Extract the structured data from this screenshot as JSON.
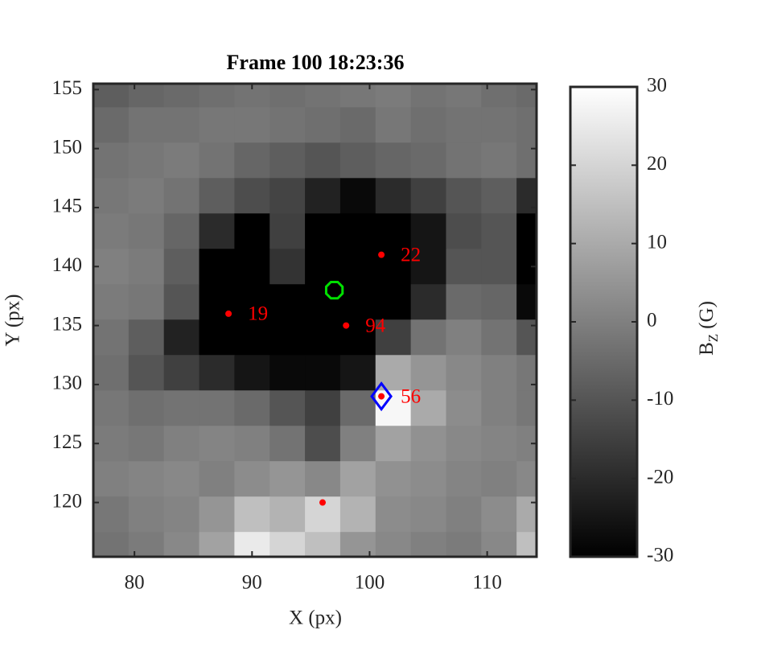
{
  "chart_data": {
    "type": "heatmap",
    "title": "Frame 100  18:23:36",
    "x_label": "X (px)",
    "y_label": "Y (px)",
    "colorbar_label": {
      "main": "B",
      "sub": "Z",
      "unit": "(G)"
    },
    "xlim": [
      76.5,
      114.2
    ],
    "ylim": [
      115.4,
      155.5
    ],
    "xticks": [
      80,
      90,
      100,
      110
    ],
    "yticks": [
      120,
      125,
      130,
      135,
      140,
      145,
      150,
      155
    ],
    "clim": [
      -30,
      30
    ],
    "cticks": [
      -30,
      -20,
      -10,
      0,
      10,
      20,
      30
    ],
    "cell_size": 3,
    "x": [
      78,
      81,
      84,
      87,
      90,
      93,
      96,
      99,
      102,
      105,
      108,
      111,
      114
    ],
    "y": [
      155,
      152,
      149,
      146,
      143,
      140,
      137,
      134,
      131,
      128,
      125,
      122,
      119,
      116
    ],
    "z": [
      [
        -8,
        -6,
        -5,
        -4,
        -3,
        -4,
        -3,
        -2,
        -1,
        -3,
        -2,
        -4,
        -5
      ],
      [
        -5,
        -3,
        -3,
        -2,
        -2,
        -3,
        -4,
        -5,
        -2,
        -4,
        -3,
        -3,
        -4
      ],
      [
        -3,
        -2,
        -1,
        -3,
        -6,
        -8,
        -10,
        -8,
        -6,
        -5,
        -3,
        -2,
        -4
      ],
      [
        -2,
        -1,
        -3,
        -8,
        -12,
        -14,
        -22,
        -28,
        -20,
        -15,
        -10,
        -8,
        -20
      ],
      [
        -1,
        -2,
        -6,
        -20,
        -30,
        -15,
        -30,
        -30,
        -30,
        -25,
        -12,
        -10,
        -30
      ],
      [
        0,
        -1,
        -8,
        -30,
        -30,
        -18,
        -30,
        -30,
        -30,
        -25,
        -10,
        -10,
        -30
      ],
      [
        -1,
        -2,
        -10,
        -30,
        -30,
        -30,
        -30,
        -30,
        -30,
        -20,
        -5,
        -6,
        -28
      ],
      [
        -3,
        -8,
        -22,
        -30,
        -30,
        -30,
        -30,
        -30,
        -15,
        -3,
        0,
        -3,
        -10
      ],
      [
        -4,
        -10,
        -15,
        -20,
        -25,
        -28,
        -28,
        -25,
        10,
        5,
        2,
        0,
        -2
      ],
      [
        -2,
        -4,
        -3,
        -3,
        -5,
        -10,
        -15,
        -5,
        28,
        10,
        3,
        0,
        -2
      ],
      [
        -1,
        -2,
        0,
        1,
        0,
        -3,
        -12,
        0,
        8,
        4,
        2,
        1,
        0
      ],
      [
        0,
        1,
        2,
        0,
        3,
        5,
        2,
        8,
        4,
        3,
        1,
        0,
        2
      ],
      [
        -2,
        0,
        1,
        5,
        15,
        12,
        20,
        12,
        3,
        2,
        0,
        3,
        10
      ],
      [
        -3,
        -1,
        2,
        8,
        25,
        20,
        15,
        5,
        2,
        0,
        -1,
        2,
        15
      ]
    ],
    "point_color": "#ff0000",
    "points": [
      {
        "x": 88,
        "y": 136,
        "label": "19"
      },
      {
        "x": 101,
        "y": 141,
        "label": "22"
      },
      {
        "x": 98,
        "y": 135,
        "label": "94"
      },
      {
        "x": 101,
        "y": 129,
        "label": "56"
      },
      {
        "x": 96,
        "y": 120
      }
    ],
    "hexagon_marker": {
      "x": 97,
      "y": 138,
      "color": "#00e000"
    },
    "diamond_marker": {
      "x": 101,
      "y": 129,
      "color": "#0000ff"
    }
  }
}
